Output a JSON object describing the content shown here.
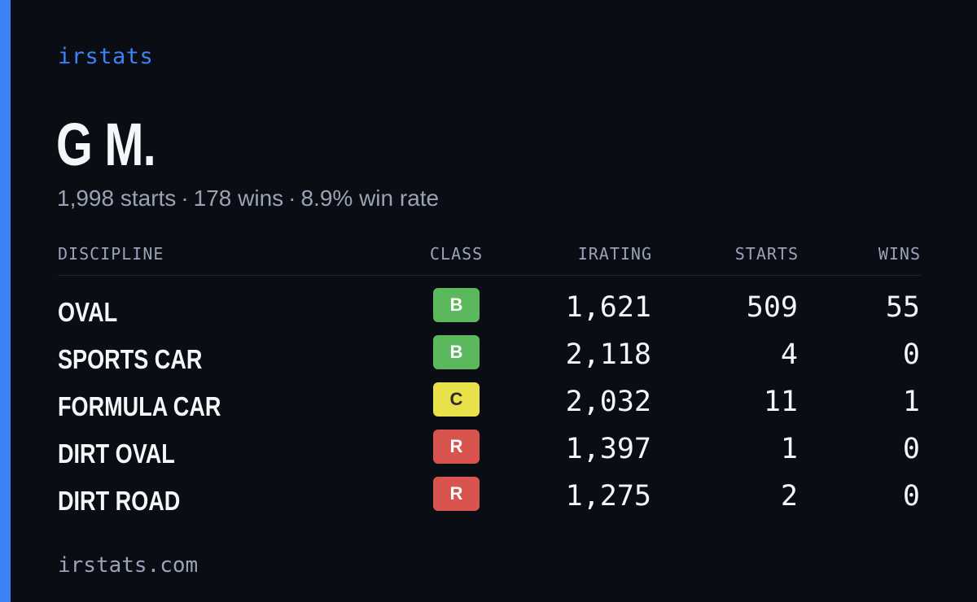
{
  "brand": "irstats",
  "driver": {
    "name": "G M.",
    "starts": "1,998 starts",
    "wins": "178 wins",
    "win_rate": "8.9% win rate",
    "separator": "·"
  },
  "table": {
    "headers": {
      "discipline": "DISCIPLINE",
      "class": "CLASS",
      "irating": "IRATING",
      "starts": "STARTS",
      "wins": "WINS"
    },
    "rows": [
      {
        "discipline": "OVAL",
        "class": "B",
        "irating": "1,621",
        "starts": "509",
        "wins": "55"
      },
      {
        "discipline": "SPORTS CAR",
        "class": "B",
        "irating": "2,118",
        "starts": "4",
        "wins": "0"
      },
      {
        "discipline": "FORMULA CAR",
        "class": "C",
        "irating": "2,032",
        "starts": "11",
        "wins": "1"
      },
      {
        "discipline": "DIRT OVAL",
        "class": "R",
        "irating": "1,397",
        "starts": "1",
        "wins": "0"
      },
      {
        "discipline": "DIRT ROAD",
        "class": "R",
        "irating": "1,275",
        "starts": "2",
        "wins": "0"
      }
    ]
  },
  "class_colors": {
    "B": {
      "bg": "#5cb85c",
      "fg": "#ffffff"
    },
    "C": {
      "bg": "#e8e14a",
      "fg": "#2a2a2a"
    },
    "R": {
      "bg": "#d9534f",
      "fg": "#ffffff"
    }
  },
  "accent_color": "#3b82f6",
  "footer": "irstats.com"
}
